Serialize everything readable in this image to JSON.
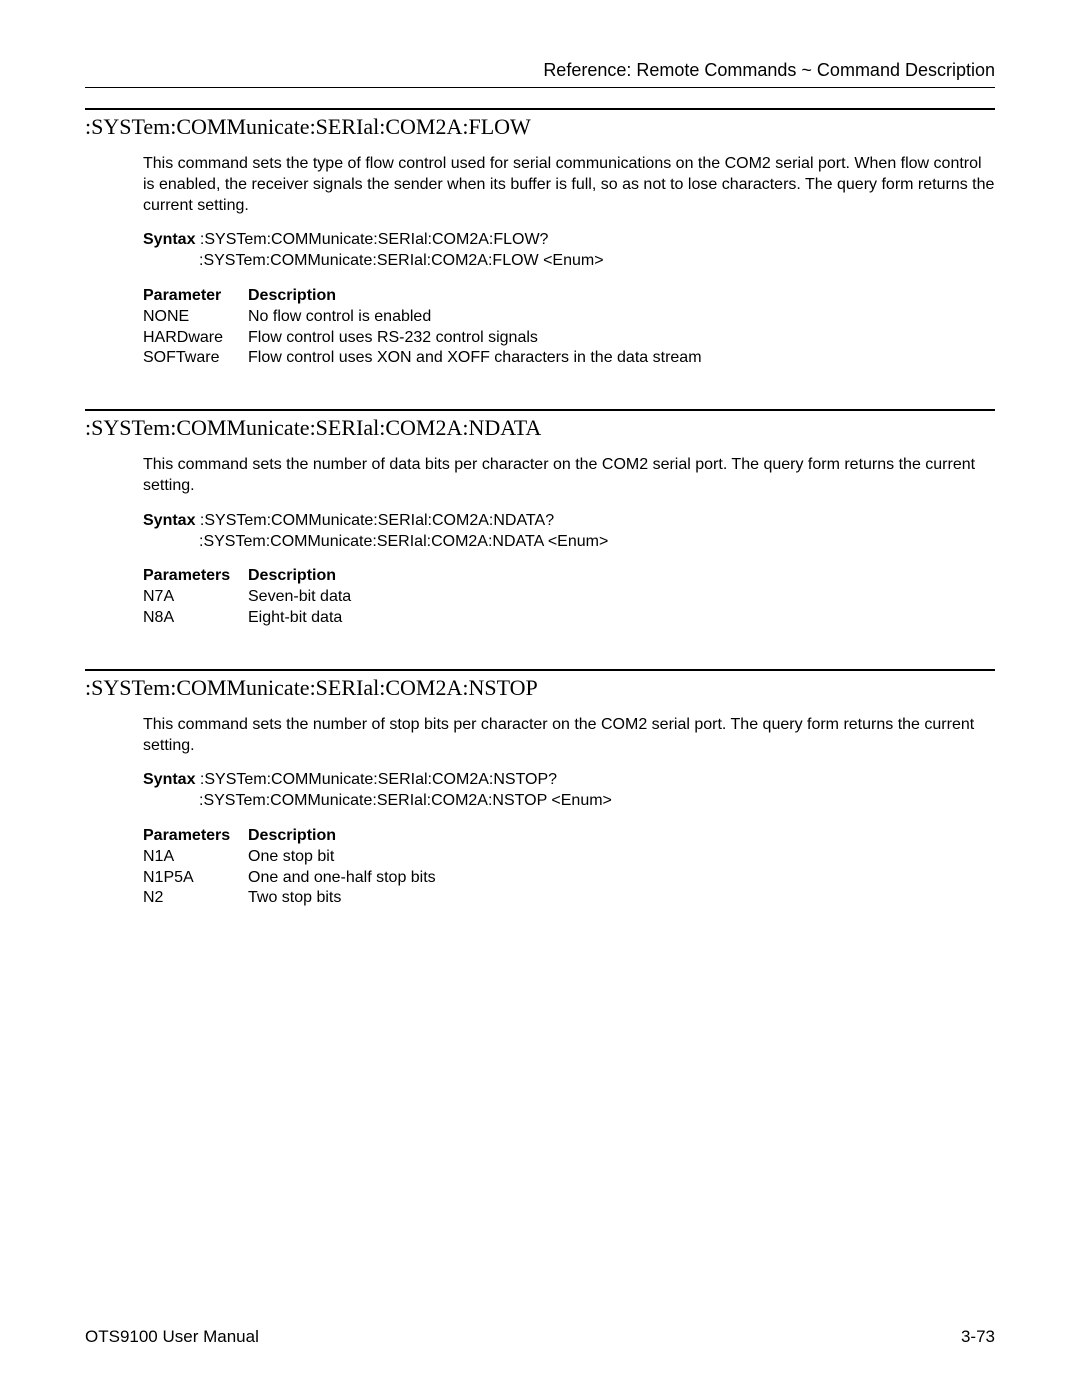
{
  "header": {
    "text": "Reference: Remote Commands ~ Command Description"
  },
  "sections": [
    {
      "title": ":SYSTem:COMMunicate:SERIal:COM2A:FLOW",
      "description": "This command sets the type of flow control used for serial communications on the COM2 serial port. When flow control is enabled, the receiver signals the sender when its buffer is full, so as not to lose characters. The query form returns the current setting.",
      "syntax_label": "Syntax",
      "syntax_line1": ":SYSTem:COMMunicate:SERIal:COM2A:FLOW?",
      "syntax_line2": ":SYSTem:COMMunicate:SERIal:COM2A:FLOW <Enum>",
      "param_header_col1": "Parameter",
      "param_header_col2": "Description",
      "params": [
        {
          "name": "NONE",
          "desc": "No flow control is enabled"
        },
        {
          "name": "HARDware",
          "desc": "Flow control uses RS-232 control signals"
        },
        {
          "name": "SOFTware",
          "desc": "Flow control uses XON and XOFF characters in the data stream"
        }
      ]
    },
    {
      "title": ":SYSTem:COMMunicate:SERIal:COM2A:NDATA",
      "description": "This command sets the number of data bits per character on the COM2 serial port. The query form returns the current setting.",
      "syntax_label": "Syntax",
      "syntax_line1": ":SYSTem:COMMunicate:SERIal:COM2A:NDATA?",
      "syntax_line2": ":SYSTem:COMMunicate:SERIal:COM2A:NDATA <Enum>",
      "param_header_col1": "Parameters",
      "param_header_col2": "Description",
      "params": [
        {
          "name": "N7A",
          "desc": "Seven-bit data"
        },
        {
          "name": "N8A",
          "desc": "Eight-bit data"
        }
      ]
    },
    {
      "title": ":SYSTem:COMMunicate:SERIal:COM2A:NSTOP",
      "description": "This command sets the number of stop bits per character on the COM2 serial port. The query form returns the current setting.",
      "syntax_label": "Syntax",
      "syntax_line1": ":SYSTem:COMMunicate:SERIal:COM2A:NSTOP?",
      "syntax_line2": ":SYSTem:COMMunicate:SERIal:COM2A:NSTOP <Enum>",
      "param_header_col1": "Parameters",
      "param_header_col2": "Description",
      "params": [
        {
          "name": "N1A",
          "desc": "One stop bit"
        },
        {
          "name": "N1P5A",
          "desc": "One and one-half stop bits"
        },
        {
          "name": "N2",
          "desc": "Two stop bits"
        }
      ]
    }
  ],
  "footer": {
    "left": "OTS9100 User Manual",
    "right": "3-73"
  }
}
